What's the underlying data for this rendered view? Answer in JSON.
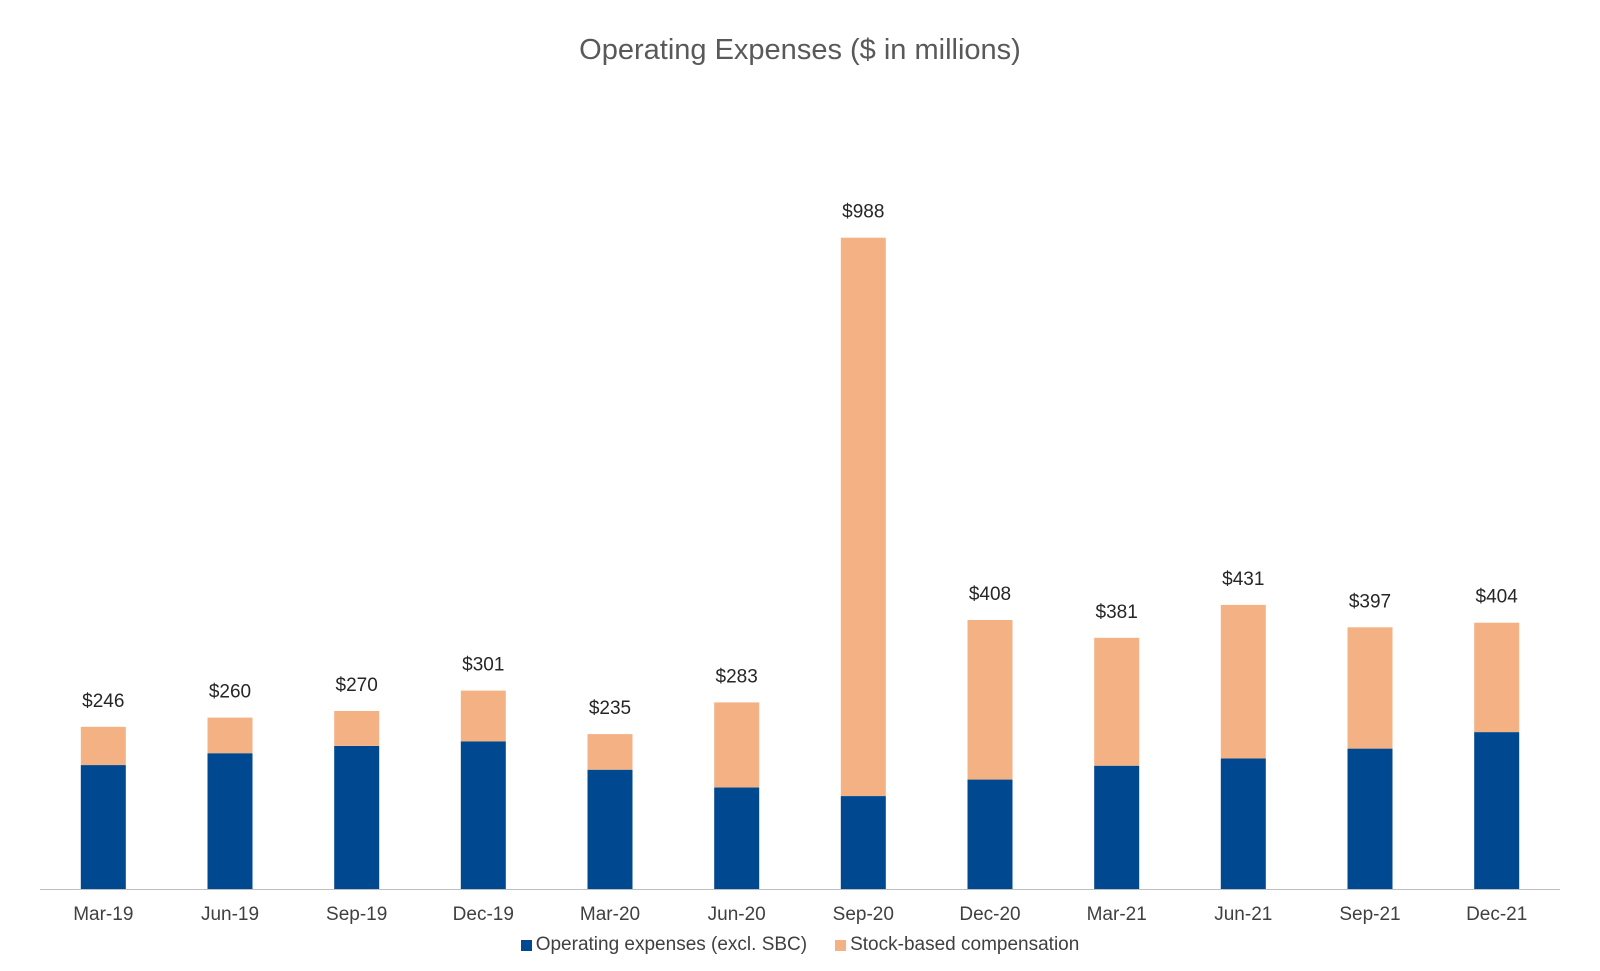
{
  "chart_data": {
    "type": "bar",
    "stacked": true,
    "title": "Operating Expenses ($ in millions)",
    "xlabel": "",
    "ylabel": "",
    "ylim": [
      0,
      1000
    ],
    "grid": false,
    "legend_position": "bottom",
    "categories": [
      "Mar-19",
      "Jun-19",
      "Sep-19",
      "Dec-19",
      "Mar-20",
      "Jun-20",
      "Sep-20",
      "Dec-20",
      "Mar-21",
      "Jun-21",
      "Sep-21",
      "Dec-21"
    ],
    "series": [
      {
        "name": "Operating expenses (excl. SBC)",
        "color": "#004990",
        "values": [
          188,
          206,
          217,
          224,
          181,
          154,
          141,
          166,
          187,
          198,
          213,
          238
        ]
      },
      {
        "name": "Stock-based compensation",
        "color": "#F4B183",
        "values": [
          58,
          54,
          53,
          77,
          54,
          129,
          847,
          242,
          194,
          233,
          184,
          166
        ]
      }
    ],
    "totals": [
      246,
      260,
      270,
      301,
      235,
      283,
      988,
      408,
      381,
      431,
      397,
      404
    ],
    "total_labels": [
      "$246",
      "$260",
      "$270",
      "$301",
      "$235",
      "$283",
      "$988",
      "$408",
      "$381",
      "$431",
      "$397",
      "$404"
    ]
  }
}
